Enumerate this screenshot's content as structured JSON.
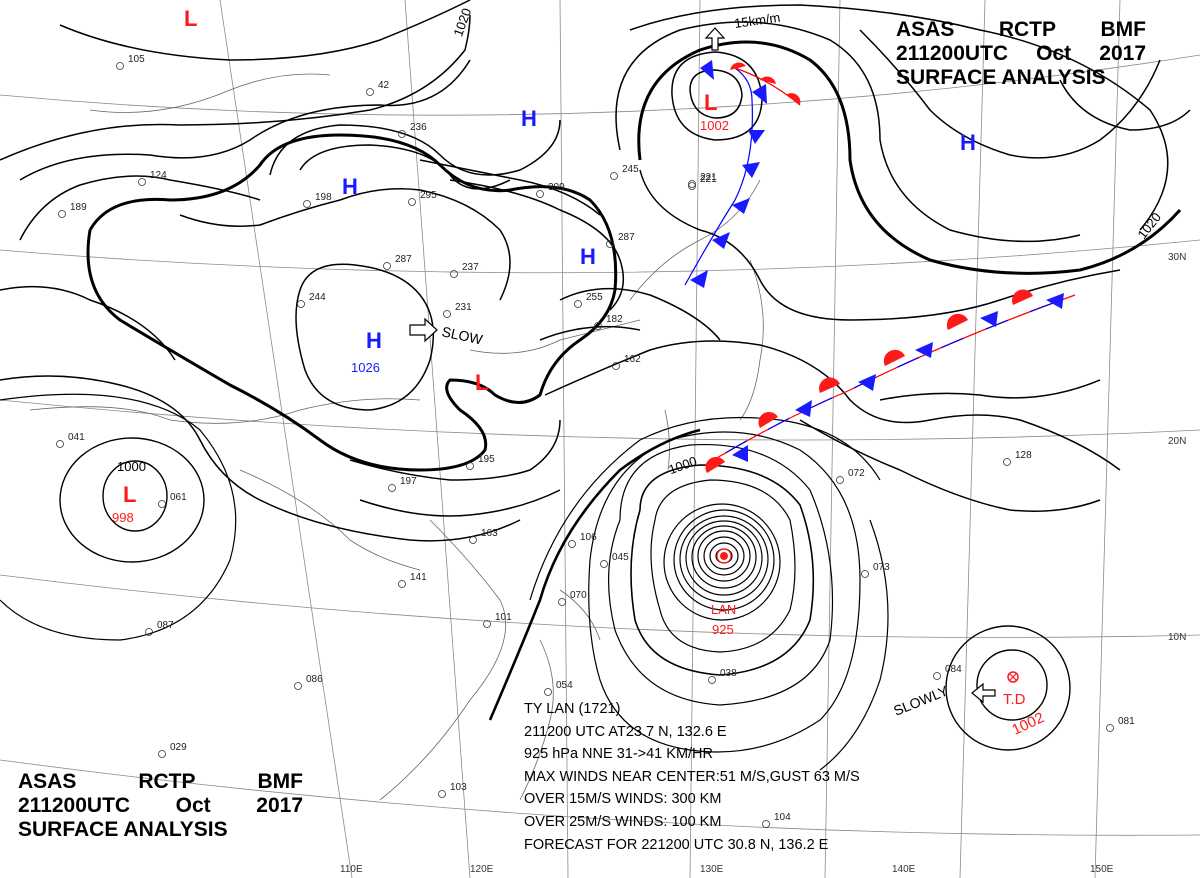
{
  "title": {
    "line1": [
      "ASAS",
      "RCTP",
      "BMF"
    ],
    "line2": [
      "211200UTC",
      "Oct",
      "2017"
    ],
    "line3": "SURFACE ANALYSIS"
  },
  "highs": [
    {
      "label": "H",
      "pressure": ""
    },
    {
      "label": "H",
      "pressure": ""
    },
    {
      "label": "H",
      "pressure": ""
    },
    {
      "label": "H",
      "pressure": "1026"
    },
    {
      "label": "H",
      "pressure": ""
    }
  ],
  "lows": [
    {
      "label": "L",
      "pressure": ""
    },
    {
      "label": "L",
      "pressure": "1002"
    },
    {
      "label": "L",
      "pressure": ""
    },
    {
      "label": "L",
      "pressure": "998"
    }
  ],
  "typhoon": {
    "name": "LAN",
    "pressure": "925"
  },
  "tropical_depression": {
    "label": "T.D",
    "pressure": "1002"
  },
  "isobar_labels": {
    "a": "1020",
    "b": "1020",
    "c": "1000",
    "d": "1000"
  },
  "motion_labels": {
    "slow_west": "SLOW",
    "slowly_td": "SLOWLY",
    "wind_scale": "15km/m"
  },
  "lat_labels": [
    "30N",
    "20N",
    "10N"
  ],
  "lon_labels": [
    "110E",
    "120E",
    "130E",
    "140E",
    "150E"
  ],
  "ty_info": [
    "TY  LAN   (1721)",
    "211200 UTC   AT23.7 N, 132.6 E",
    "925 hPa  NNE   31->41 KM/HR",
    "MAX WINDS NEAR CENTER:51 M/S,GUST 63 M/S",
    "OVER 15M/S WINDS:  300 KM",
    "OVER 25M/S WINDS:  100 KM",
    "FORECAST FOR 221200 UTC 30.8 N, 136.2 E"
  ],
  "station_samples": [
    "105",
    "124",
    "189",
    "42",
    "236",
    "198",
    "295",
    "287",
    "237",
    "231",
    "244",
    "309",
    "245",
    "221",
    "287",
    "255",
    "162",
    "182",
    "221",
    "195",
    "197",
    "163",
    "141",
    "101",
    "106",
    "070",
    "045",
    "072",
    "128",
    "073",
    "084",
    "081",
    "104",
    "103",
    "029",
    "041",
    "061",
    "087",
    "086",
    "038",
    "054"
  ],
  "colors": {
    "high": "#1a1aff",
    "low": "#ff1a1a",
    "warm_front": "#ff0000",
    "cold_front": "#0000ff",
    "isobar": "#000000"
  }
}
